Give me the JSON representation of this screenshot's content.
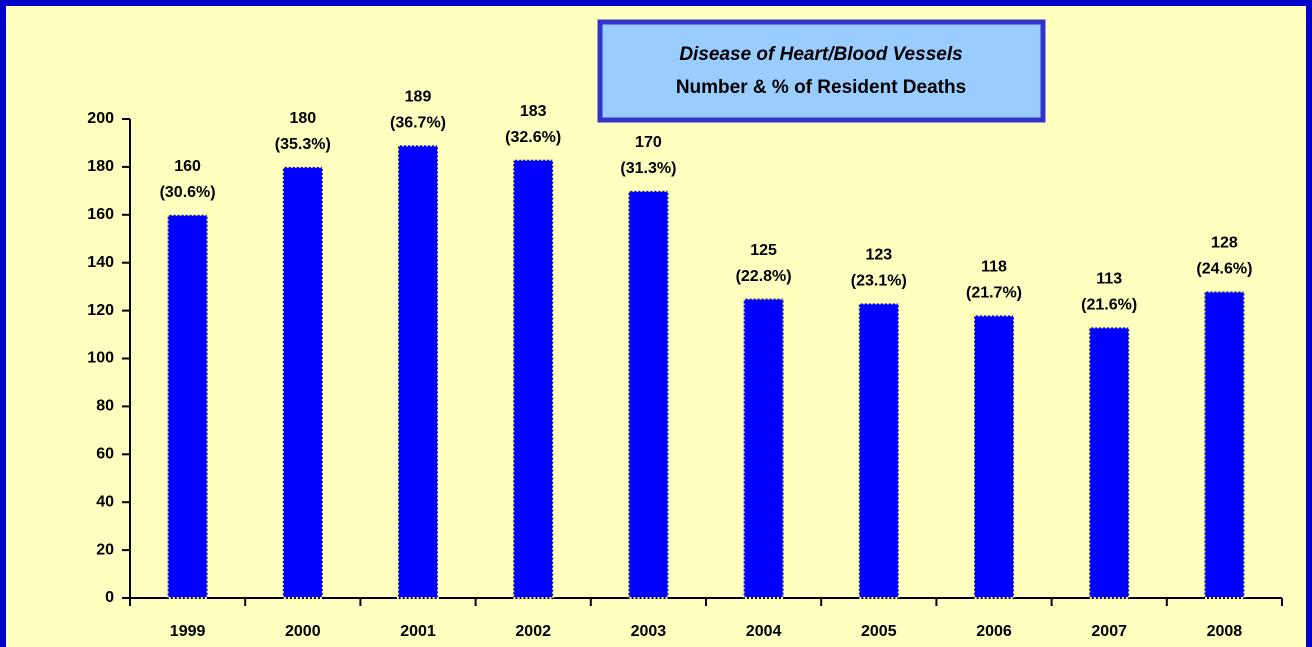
{
  "chart_data": {
    "type": "bar",
    "title": "Disease of Heart/Blood Vessels",
    "subtitle": "Number & % of Resident Deaths",
    "categories": [
      "1999",
      "2000",
      "2001",
      "2002",
      "2003",
      "2004",
      "2005",
      "2006",
      "2007",
      "2008"
    ],
    "values": [
      160,
      180,
      189,
      183,
      170,
      125,
      123,
      118,
      113,
      128
    ],
    "percent_labels": [
      "(30.6%)",
      "(35.3%)",
      "(36.7%)",
      "(32.6%)",
      "(31.3%)",
      "(22.8%)",
      "(23.1%)",
      "(21.7%)",
      "(21.6%)",
      "(24.6%)"
    ],
    "color": "#0000ff",
    "ylim": [
      0,
      200
    ],
    "yticks": [
      0,
      20,
      40,
      60,
      80,
      100,
      120,
      140,
      160,
      180,
      200
    ]
  }
}
